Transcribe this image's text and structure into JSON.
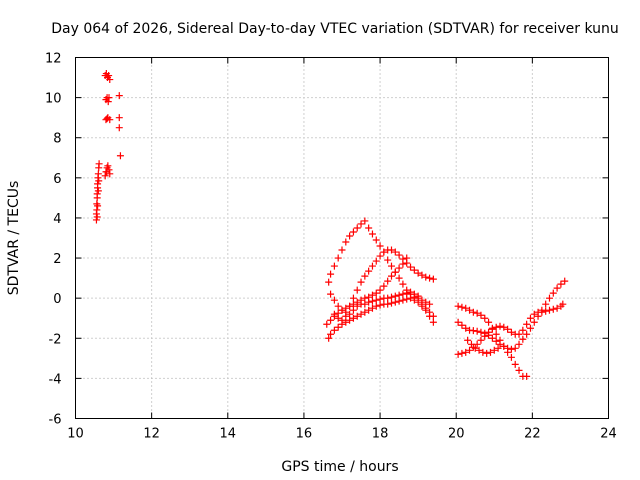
{
  "chart_data": {
    "type": "scatter",
    "title": "Day 064 of 2026, Sidereal Day-to-day VTEC variation (SDTVAR) for receiver kunu",
    "xlabel": "GPS time / hours",
    "ylabel": "SDTVAR / TECUs",
    "xlim": [
      10,
      24
    ],
    "ylim": [
      -6,
      12
    ],
    "xticks": [
      "10",
      "12",
      "14",
      "16",
      "18",
      "20",
      "22",
      "24"
    ],
    "yticks": [
      "-6",
      "-4",
      "-2",
      "0",
      "2",
      "4",
      "6",
      "8",
      "10",
      "12"
    ],
    "grid": true,
    "marker": "plus",
    "color": "#ff0000",
    "points": [
      [
        10.55,
        3.9
      ],
      [
        10.55,
        4.2
      ],
      [
        10.56,
        4.4
      ],
      [
        10.56,
        4.7
      ],
      [
        10.57,
        5.0
      ],
      [
        10.57,
        5.2
      ],
      [
        10.58,
        5.5
      ],
      [
        10.58,
        5.7
      ],
      [
        10.59,
        6.0
      ],
      [
        10.6,
        6.2
      ],
      [
        10.61,
        6.5
      ],
      [
        10.62,
        6.7
      ],
      [
        10.57,
        4.05
      ],
      [
        10.58,
        4.6
      ],
      [
        10.6,
        5.35
      ],
      [
        10.61,
        5.85
      ],
      [
        10.78,
        6.1
      ],
      [
        10.8,
        6.3
      ],
      [
        10.83,
        6.5
      ],
      [
        10.85,
        6.6
      ],
      [
        10.88,
        6.4
      ],
      [
        10.9,
        6.2
      ],
      [
        10.82,
        6.3
      ],
      [
        10.8,
        8.9
      ],
      [
        10.85,
        9.0
      ],
      [
        10.9,
        8.9
      ],
      [
        10.83,
        8.95
      ],
      [
        10.8,
        9.9
      ],
      [
        10.83,
        10.0
      ],
      [
        10.86,
        9.8
      ],
      [
        10.88,
        10.0
      ],
      [
        10.78,
        11.1
      ],
      [
        10.81,
        11.2
      ],
      [
        10.84,
        11.0
      ],
      [
        10.87,
        11.1
      ],
      [
        10.9,
        10.9
      ],
      [
        11.15,
        10.1
      ],
      [
        11.15,
        9.0
      ],
      [
        11.15,
        8.5
      ],
      [
        11.18,
        7.1
      ],
      [
        16.65,
        0.8
      ],
      [
        16.7,
        1.2
      ],
      [
        16.8,
        1.6
      ],
      [
        16.9,
        2.0
      ],
      [
        17.0,
        2.4
      ],
      [
        17.1,
        2.8
      ],
      [
        17.2,
        3.1
      ],
      [
        17.3,
        3.3
      ],
      [
        17.4,
        3.5
      ],
      [
        17.5,
        3.7
      ],
      [
        17.6,
        3.85
      ],
      [
        17.7,
        3.5
      ],
      [
        17.8,
        3.2
      ],
      [
        17.9,
        2.9
      ],
      [
        18.0,
        2.6
      ],
      [
        18.1,
        2.3
      ],
      [
        18.2,
        1.9
      ],
      [
        18.3,
        1.6
      ],
      [
        18.4,
        1.3
      ],
      [
        18.5,
        1.0
      ],
      [
        18.6,
        0.7
      ],
      [
        18.7,
        0.4
      ],
      [
        18.8,
        0.2
      ],
      [
        18.9,
        0.05
      ],
      [
        19.0,
        0.0
      ],
      [
        19.1,
        -0.3
      ],
      [
        19.2,
        -0.5
      ],
      [
        19.3,
        -0.7
      ],
      [
        19.4,
        -0.9
      ],
      [
        16.6,
        -1.3
      ],
      [
        16.7,
        -1.1
      ],
      [
        16.8,
        -0.9
      ],
      [
        16.9,
        -0.75
      ],
      [
        17.0,
        -0.6
      ],
      [
        17.1,
        -0.5
      ],
      [
        17.2,
        -0.4
      ],
      [
        17.3,
        -0.3
      ],
      [
        17.4,
        -0.2
      ],
      [
        17.5,
        -0.1
      ],
      [
        17.6,
        0.0
      ],
      [
        17.7,
        0.05
      ],
      [
        17.8,
        0.15
      ],
      [
        17.9,
        0.25
      ],
      [
        18.0,
        0.4
      ],
      [
        18.1,
        0.6
      ],
      [
        18.2,
        0.85
      ],
      [
        18.3,
        1.1
      ],
      [
        18.4,
        1.3
      ],
      [
        18.5,
        1.5
      ],
      [
        18.6,
        1.7
      ],
      [
        18.7,
        2.0
      ],
      [
        16.65,
        -2.0
      ],
      [
        16.7,
        -1.8
      ],
      [
        16.8,
        -1.6
      ],
      [
        16.9,
        -1.45
      ],
      [
        17.0,
        -1.3
      ],
      [
        17.1,
        -1.2
      ],
      [
        17.2,
        -1.1
      ],
      [
        17.3,
        -1.0
      ],
      [
        17.4,
        -0.9
      ],
      [
        17.5,
        -0.8
      ],
      [
        17.6,
        -0.7
      ],
      [
        17.7,
        -0.6
      ],
      [
        17.8,
        -0.5
      ],
      [
        17.9,
        -0.4
      ],
      [
        18.0,
        -0.35
      ],
      [
        18.1,
        -0.3
      ],
      [
        18.2,
        -0.3
      ],
      [
        18.3,
        -0.25
      ],
      [
        18.4,
        -0.2
      ],
      [
        18.5,
        -0.15
      ],
      [
        18.6,
        -0.1
      ],
      [
        18.7,
        -0.05
      ],
      [
        18.8,
        0.0
      ],
      [
        18.9,
        -0.1
      ],
      [
        19.0,
        -0.2
      ],
      [
        19.1,
        -0.4
      ],
      [
        19.2,
        -0.6
      ],
      [
        19.3,
        -0.9
      ],
      [
        19.4,
        -1.2
      ],
      [
        16.7,
        0.2
      ],
      [
        16.8,
        -0.1
      ],
      [
        16.9,
        -0.4
      ],
      [
        17.0,
        -0.6
      ],
      [
        17.1,
        -0.7
      ],
      [
        17.2,
        -0.4
      ],
      [
        17.3,
        0.0
      ],
      [
        17.4,
        0.4
      ],
      [
        17.5,
        0.8
      ],
      [
        17.6,
        1.1
      ],
      [
        17.7,
        1.35
      ],
      [
        17.8,
        1.6
      ],
      [
        17.9,
        1.85
      ],
      [
        18.0,
        2.1
      ],
      [
        18.1,
        2.3
      ],
      [
        18.2,
        2.4
      ],
      [
        18.3,
        2.4
      ],
      [
        18.4,
        2.3
      ],
      [
        18.5,
        2.15
      ],
      [
        18.6,
        1.95
      ],
      [
        18.7,
        1.75
      ],
      [
        18.8,
        1.55
      ],
      [
        18.9,
        1.4
      ],
      [
        19.0,
        1.25
      ],
      [
        19.1,
        1.15
      ],
      [
        19.2,
        1.05
      ],
      [
        19.3,
        1.0
      ],
      [
        19.4,
        0.95
      ],
      [
        16.8,
        -0.8
      ],
      [
        16.9,
        -1.0
      ],
      [
        17.0,
        -1.1
      ],
      [
        17.1,
        -0.9
      ],
      [
        17.2,
        -0.8
      ],
      [
        17.3,
        -0.6
      ],
      [
        17.4,
        -0.4
      ],
      [
        17.5,
        -0.3
      ],
      [
        17.6,
        -0.3
      ],
      [
        17.7,
        -0.2
      ],
      [
        17.8,
        -0.15
      ],
      [
        17.9,
        -0.1
      ],
      [
        18.0,
        -0.05
      ],
      [
        18.1,
        0.0
      ],
      [
        18.2,
        0.0
      ],
      [
        18.3,
        0.05
      ],
      [
        18.4,
        0.1
      ],
      [
        18.5,
        0.15
      ],
      [
        18.6,
        0.2
      ],
      [
        18.7,
        0.25
      ],
      [
        18.8,
        0.3
      ],
      [
        18.9,
        0.2
      ],
      [
        19.0,
        0.1
      ],
      [
        19.1,
        -0.1
      ],
      [
        19.2,
        -0.2
      ],
      [
        19.3,
        -0.3
      ],
      [
        20.05,
        -2.8
      ],
      [
        20.15,
        -2.75
      ],
      [
        20.25,
        -2.7
      ],
      [
        20.35,
        -2.6
      ],
      [
        20.45,
        -2.45
      ],
      [
        20.55,
        -2.3
      ],
      [
        20.65,
        -2.1
      ],
      [
        20.75,
        -1.9
      ],
      [
        20.85,
        -1.7
      ],
      [
        20.95,
        -1.55
      ],
      [
        21.05,
        -1.45
      ],
      [
        21.15,
        -1.4
      ],
      [
        21.25,
        -1.45
      ],
      [
        21.35,
        -1.55
      ],
      [
        21.45,
        -1.7
      ],
      [
        21.55,
        -1.8
      ],
      [
        21.65,
        -1.8
      ],
      [
        21.75,
        -1.6
      ],
      [
        21.85,
        -1.3
      ],
      [
        21.95,
        -1.0
      ],
      [
        22.05,
        -0.8
      ],
      [
        22.15,
        -0.7
      ],
      [
        22.25,
        -0.7
      ],
      [
        22.35,
        -0.65
      ],
      [
        22.45,
        -0.6
      ],
      [
        22.55,
        -0.55
      ],
      [
        22.65,
        -0.5
      ],
      [
        22.75,
        -0.4
      ],
      [
        22.8,
        -0.3
      ],
      [
        20.05,
        -0.4
      ],
      [
        20.15,
        -0.45
      ],
      [
        20.25,
        -0.5
      ],
      [
        20.35,
        -0.6
      ],
      [
        20.45,
        -0.7
      ],
      [
        20.55,
        -0.75
      ],
      [
        20.65,
        -0.85
      ],
      [
        20.75,
        -1.0
      ],
      [
        20.85,
        -1.2
      ],
      [
        20.95,
        -1.5
      ],
      [
        21.05,
        -1.8
      ],
      [
        21.15,
        -2.1
      ],
      [
        21.25,
        -2.4
      ],
      [
        21.35,
        -2.7
      ],
      [
        21.45,
        -2.95
      ],
      [
        21.55,
        -3.3
      ],
      [
        21.65,
        -3.6
      ],
      [
        21.75,
        -3.9
      ],
      [
        21.85,
        -3.9
      ],
      [
        20.05,
        -1.2
      ],
      [
        20.15,
        -1.35
      ],
      [
        20.25,
        -1.5
      ],
      [
        20.35,
        -1.6
      ],
      [
        20.45,
        -1.62
      ],
      [
        20.55,
        -1.65
      ],
      [
        20.65,
        -1.7
      ],
      [
        20.75,
        -1.75
      ],
      [
        20.85,
        -1.85
      ],
      [
        20.95,
        -2.0
      ],
      [
        21.05,
        -2.15
      ],
      [
        21.15,
        -2.3
      ],
      [
        21.25,
        -2.4
      ],
      [
        21.35,
        -2.5
      ],
      [
        21.45,
        -2.55
      ],
      [
        21.55,
        -2.5
      ],
      [
        21.65,
        -2.3
      ],
      [
        21.75,
        -2.05
      ],
      [
        21.85,
        -1.8
      ],
      [
        21.95,
        -1.5
      ],
      [
        22.05,
        -1.2
      ],
      [
        22.15,
        -0.9
      ],
      [
        22.25,
        -0.6
      ],
      [
        22.35,
        -0.3
      ],
      [
        22.45,
        0.0
      ],
      [
        22.55,
        0.25
      ],
      [
        22.65,
        0.5
      ],
      [
        22.75,
        0.7
      ],
      [
        22.85,
        0.85
      ],
      [
        20.3,
        -2.1
      ],
      [
        20.4,
        -2.3
      ],
      [
        20.5,
        -2.5
      ],
      [
        20.6,
        -2.6
      ],
      [
        20.7,
        -2.7
      ],
      [
        20.8,
        -2.75
      ],
      [
        20.9,
        -2.7
      ],
      [
        21.0,
        -2.6
      ],
      [
        21.1,
        -2.5
      ]
    ]
  }
}
